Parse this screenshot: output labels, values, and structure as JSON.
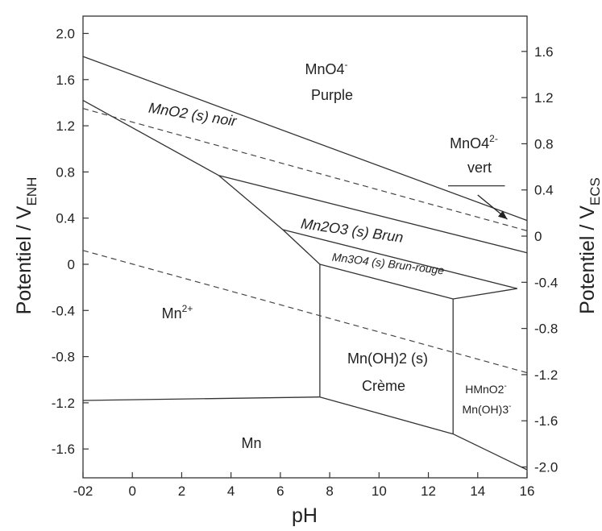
{
  "chart_data": {
    "type": "diagram",
    "xlabel": "pH",
    "ylabel_left": "Potentiel / V",
    "ylabel_left_sub": "ENH",
    "ylabel_right": "Potentiel / V",
    "ylabel_right_sub": "ECS",
    "xlim": [
      -2,
      16
    ],
    "ylim": [
      -1.85,
      2.15
    ],
    "x_ticks": [
      -2,
      0,
      2,
      4,
      6,
      8,
      10,
      12,
      14,
      16
    ],
    "x_tick_labels": [
      "-02",
      "0",
      "2",
      "4",
      "6",
      "8",
      "10",
      "12",
      "14",
      "16"
    ],
    "y_ticks_left": [
      2.0,
      1.6,
      1.2,
      0.8,
      0.4,
      0.0,
      -0.4,
      -0.8,
      -1.2,
      -1.6
    ],
    "y_tick_labels_left": [
      "2.0",
      "1.6",
      "1.2",
      "0.8",
      "0.4",
      "0",
      "-0.4",
      "-0.8",
      "-1.2",
      "-1.6"
    ],
    "y_ticks_right_ecs": [
      1.6,
      1.2,
      0.8,
      0.4,
      0.0,
      -0.4,
      -0.8,
      -1.2,
      -1.6,
      -2.0
    ],
    "y_tick_labels_right": [
      "1.6",
      "1.2",
      "0.8",
      "0.4",
      "0",
      "-0.4",
      "-0.8",
      "-1.2",
      "-1.6",
      "-2.0"
    ],
    "ecs_offset": 0.244,
    "boundaries": [
      {
        "name": "MnO4- / MnO2",
        "points": [
          [
            -2,
            1.8
          ],
          [
            16,
            0.38
          ]
        ]
      },
      {
        "name": "MnO2 / Mn2+",
        "points": [
          [
            -2,
            1.42
          ],
          [
            3.5,
            0.77
          ]
        ]
      },
      {
        "name": "Mn2+ / Mn2O3",
        "points": [
          [
            3.5,
            0.77
          ],
          [
            6.1,
            0.3
          ]
        ]
      },
      {
        "name": "Mn2+ / Mn3O4",
        "points": [
          [
            6.1,
            0.3
          ],
          [
            7.6,
            0.0
          ]
        ]
      },
      {
        "name": "Mn2+ / Mn(OH)2",
        "points": [
          [
            7.6,
            0.0
          ],
          [
            7.6,
            -1.15
          ]
        ]
      },
      {
        "name": "Mn2+ / Mn",
        "points": [
          [
            -2,
            -1.18
          ],
          [
            7.6,
            -1.15
          ]
        ]
      },
      {
        "name": "MnO2 / Mn2O3",
        "points": [
          [
            3.5,
            0.77
          ],
          [
            16,
            0.1
          ]
        ]
      },
      {
        "name": "Mn2O3 / Mn3O4",
        "points": [
          [
            6.1,
            0.3
          ],
          [
            15.6,
            -0.21
          ]
        ]
      },
      {
        "name": "Mn3O4 / Mn(OH)2",
        "points": [
          [
            7.6,
            0.0
          ],
          [
            13.0,
            -0.3
          ]
        ]
      },
      {
        "name": "Mn3O4 / HMnO2-",
        "points": [
          [
            13.0,
            -0.3
          ],
          [
            15.6,
            -0.21
          ]
        ]
      },
      {
        "name": "Mn(OH)2 / HMnO2-",
        "points": [
          [
            13.0,
            -0.3
          ],
          [
            13.0,
            -1.47
          ]
        ]
      },
      {
        "name": "Mn(OH)2 / Mn",
        "points": [
          [
            7.6,
            -1.15
          ],
          [
            13.0,
            -1.47
          ]
        ]
      },
      {
        "name": "HMnO2- / Mn",
        "points": [
          [
            13.0,
            -1.47
          ],
          [
            16,
            -1.78
          ]
        ]
      },
      {
        "name": "MnO4- / MnO4 2-",
        "points": [
          [
            12.8,
            0.68
          ],
          [
            15.1,
            0.68
          ]
        ]
      }
    ],
    "water_lines": [
      {
        "name": "O2/H2O",
        "points": [
          [
            -2,
            1.35
          ],
          [
            16,
            0.29
          ]
        ]
      },
      {
        "name": "H+/H2",
        "points": [
          [
            -2,
            0.12
          ],
          [
            16,
            -0.94
          ]
        ]
      }
    ],
    "arrow": {
      "from": [
        14.0,
        0.6
      ],
      "to": [
        15.2,
        0.39
      ]
    },
    "region_labels": [
      {
        "text": "MnO4",
        "sup": "-",
        "sub": "4",
        "line2": "Purple"
      },
      {
        "text": "MnO2 (s) noir"
      },
      {
        "text": "MnO4",
        "sup": "2-",
        "line2": "vert"
      },
      {
        "text": "Mn2O3 (s) Brun"
      },
      {
        "text": "Mn3O4 (s) Brun-rouge"
      },
      {
        "text": "Mn",
        "sup": "2+"
      },
      {
        "text": "Mn(OH)2 (s)",
        "line2": "Crème"
      },
      {
        "text": "HMnO2",
        "sup": "-",
        "line2": "Mn(OH)3",
        "sup2": "-"
      },
      {
        "text": "Mn"
      }
    ]
  }
}
